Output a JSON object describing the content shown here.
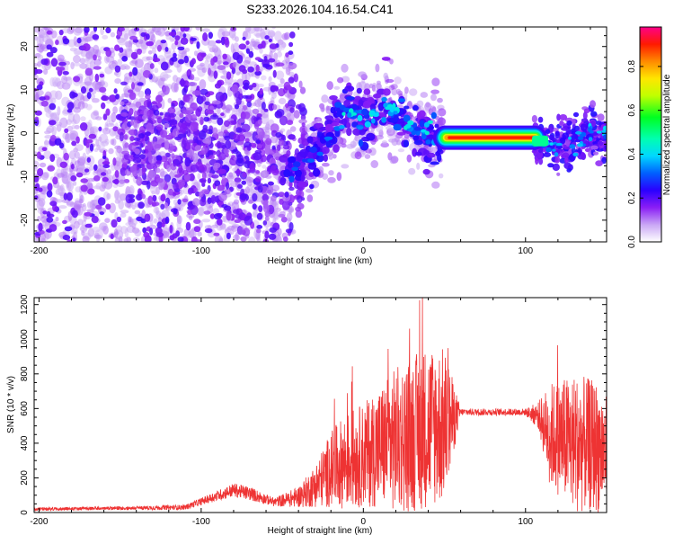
{
  "title": "S233.2026.104.16.54.C41",
  "chart_data": [
    {
      "type": "heatmap",
      "xlabel": "Height of straight line (km)",
      "ylabel": "Frequency (Hz)",
      "xlim": [
        -203,
        150
      ],
      "ylim": [
        -25,
        24.5
      ],
      "xticks": [
        -200,
        -100,
        0,
        100
      ],
      "yticks": [
        -20,
        -10,
        0,
        10,
        20
      ],
      "colorbar": {
        "label": "Normalized spectral amplitude",
        "range": [
          0,
          0.98
        ],
        "ticks": [
          0.0,
          0.2,
          0.4,
          0.6,
          0.8
        ],
        "colormap": [
          "#ffffff",
          "#8800ff",
          "#0000ff",
          "#00ffff",
          "#00ff00",
          "#ffff00",
          "#ff8800",
          "#ff0000",
          "#ff0088"
        ]
      },
      "ridge": {
        "description_points_km_hz": [
          [
            -200,
            0
          ],
          [
            -100,
            -3
          ],
          [
            -60,
            -6
          ],
          [
            -40,
            -8
          ],
          [
            -25,
            -2
          ],
          [
            -10,
            5
          ],
          [
            0,
            3
          ],
          [
            15,
            6
          ],
          [
            30,
            1
          ],
          [
            45,
            0
          ],
          [
            60,
            -1
          ],
          [
            100,
            -1
          ],
          [
            112,
            -2
          ],
          [
            125,
            -3
          ],
          [
            140,
            0
          ],
          [
            150,
            -1
          ]
        ],
        "peak_band_km": [
          48,
          108
        ],
        "peak_frequency_hz": -1,
        "peak_amplitude": 0.95
      }
    },
    {
      "type": "line",
      "xlabel": "Height of straight line (km)",
      "ylabel": "SNR (10 * v/v)",
      "xlim": [
        -203,
        150
      ],
      "ylim": [
        0,
        1240
      ],
      "xticks": [
        -200,
        -100,
        0,
        100
      ],
      "yticks": [
        0,
        200,
        400,
        600,
        800,
        1000,
        1200
      ],
      "series": [
        {
          "name": "SNR",
          "color": "#ee3333",
          "envelope_x": [
            -200,
            -150,
            -110,
            -95,
            -80,
            -70,
            -55,
            -40,
            -30,
            -20,
            -10,
            0,
            10,
            20,
            30,
            40,
            50,
            60,
            100,
            108,
            115,
            130,
            145,
            150
          ],
          "envelope_mean": [
            20,
            25,
            30,
            80,
            130,
            110,
            60,
            90,
            150,
            250,
            300,
            330,
            380,
            420,
            450,
            500,
            500,
            580,
            580,
            560,
            450,
            400,
            380,
            350
          ],
          "envelope_spread": [
            10,
            10,
            15,
            25,
            40,
            40,
            25,
            60,
            120,
            220,
            280,
            300,
            350,
            420,
            450,
            480,
            450,
            20,
            20,
            80,
            300,
            400,
            380,
            320
          ],
          "peak_max": 1240
        }
      ]
    }
  ]
}
